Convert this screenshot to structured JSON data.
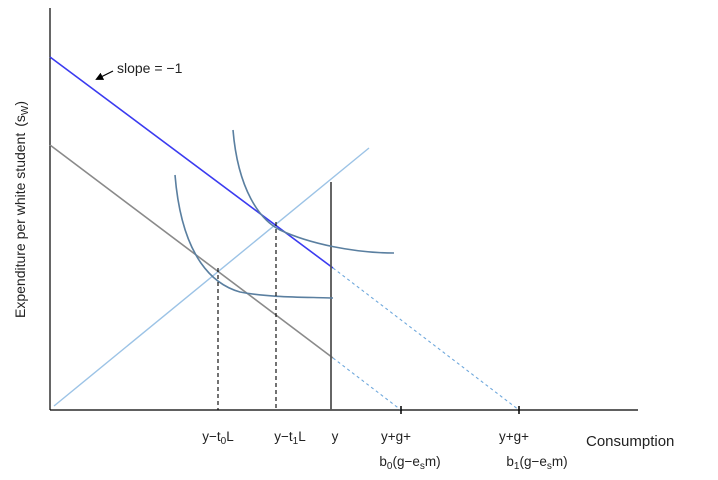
{
  "y_axis_label": "Expenditure per white student",
  "y_axis_symbol": "s",
  "y_axis_symbol_sub": "W",
  "x_axis_label": "Consumption",
  "annotation": {
    "text": "slope = −1"
  },
  "ticks": {
    "t0": {
      "pre": "y−t",
      "sub": "0",
      "post": "L"
    },
    "t1": {
      "pre": "y−t",
      "sub": "1",
      "post": "L"
    },
    "y": {
      "text": "y"
    },
    "b0": {
      "line1": "y+g+",
      "pre": "b",
      "sub": "0",
      "mid": "(g−e",
      "sub2": "s",
      "post": "m)"
    },
    "b1": {
      "line1": "y+g+",
      "pre": "b",
      "sub": "1",
      "mid": "(g−e",
      "sub2": "s",
      "post": "m)"
    }
  },
  "colors": {
    "axis": "#000000",
    "budget_high": "#3b3bf0",
    "budget_low": "#8a8a8a",
    "ray": "#9cc3e6",
    "indifference": "#5a7fa0",
    "dashed": "#000000",
    "extension": "#6fa8dc"
  }
}
